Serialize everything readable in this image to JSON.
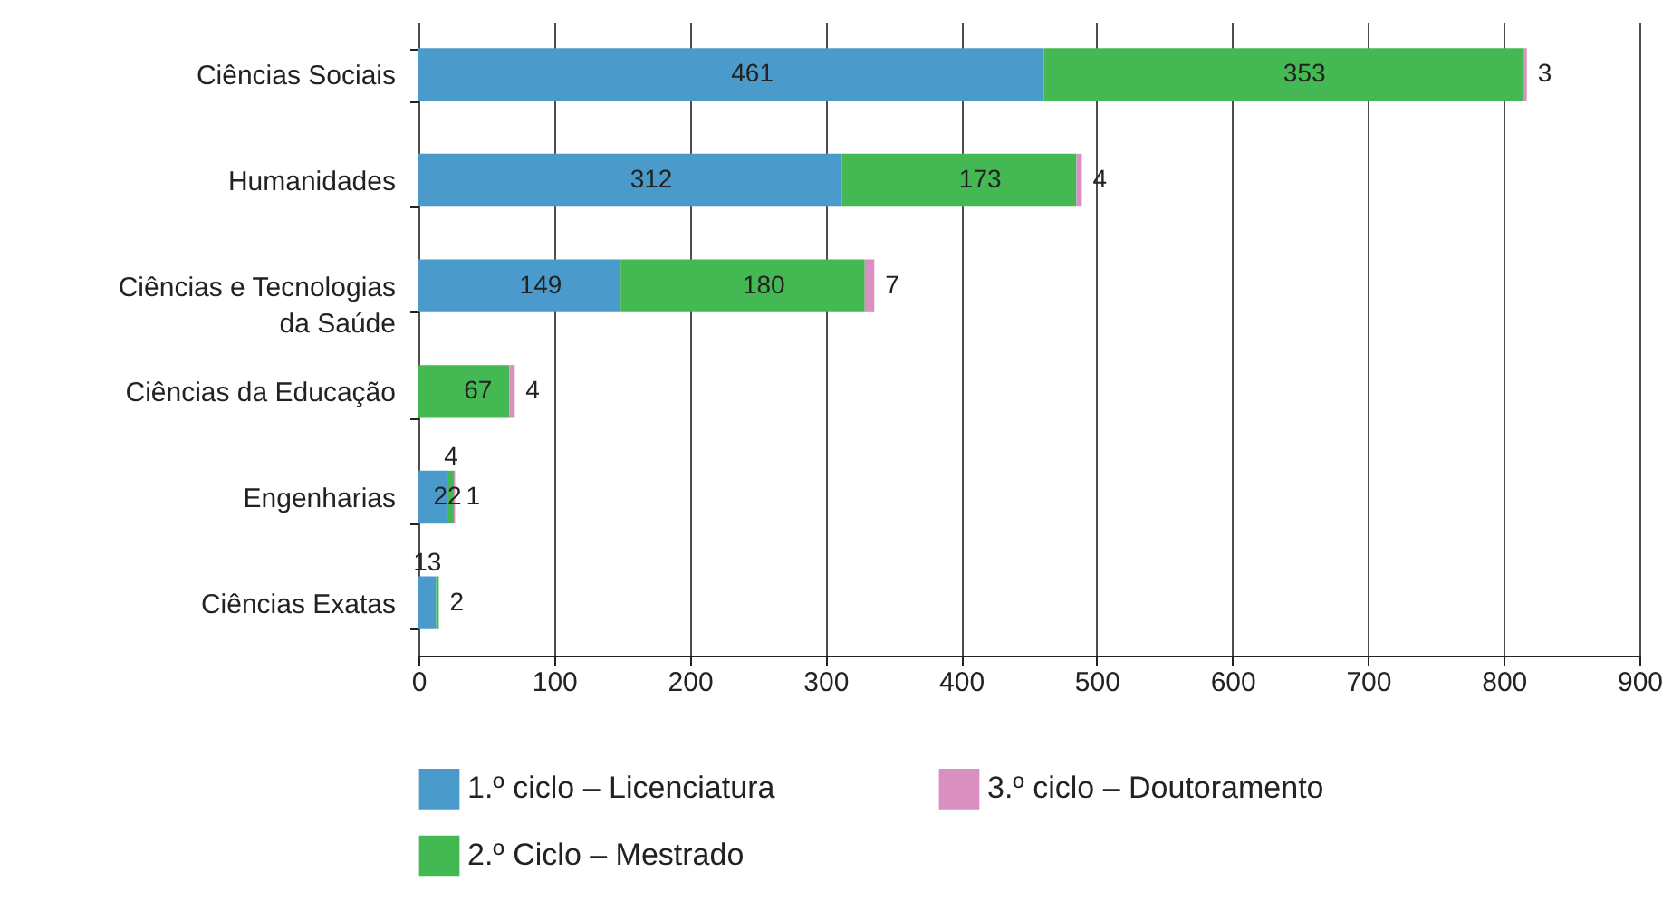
{
  "chart_data": {
    "type": "bar",
    "orientation": "horizontal",
    "stacked": true,
    "categories": [
      "Ciências Sociais",
      "Humanidades",
      "Ciências e Tecnologias\nda Saúde",
      "Ciências da Educação",
      "Engenharias",
      "Ciências Exatas"
    ],
    "series": [
      {
        "name": "1.º ciclo – Licenciatura",
        "color": "#4a9bcb",
        "values": [
          461,
          312,
          149,
          null,
          22,
          13
        ]
      },
      {
        "name": "2.º Ciclo – Mestrado",
        "color": "#44b853",
        "values": [
          353,
          173,
          180,
          67,
          4,
          2
        ]
      },
      {
        "name": "3.º ciclo – Doutoramento",
        "color": "#d98fc0",
        "values": [
          3,
          4,
          7,
          4,
          1,
          null
        ]
      }
    ],
    "xlim": [
      0,
      900
    ],
    "xticks": [
      0,
      100,
      200,
      300,
      400,
      500,
      600,
      700,
      800,
      900
    ],
    "grid": "x",
    "legend": "bottom",
    "data_labels": true
  }
}
